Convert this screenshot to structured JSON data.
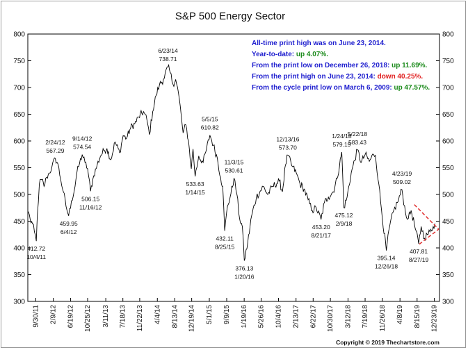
{
  "chart_data": {
    "type": "line",
    "title": "S&P 500 Energy Sector",
    "ylim": [
      300,
      800
    ],
    "y_ticks": [
      300,
      350,
      400,
      450,
      500,
      550,
      600,
      650,
      700,
      750,
      800
    ],
    "x_range": [
      "2011-08-01",
      "2020-01-31"
    ],
    "x_ticks": [
      {
        "date": "2011-09-30",
        "label": "9/30/11"
      },
      {
        "date": "2012-02-09",
        "label": "2/9/12"
      },
      {
        "date": "2012-06-19",
        "label": "6/19/12"
      },
      {
        "date": "2012-10-25",
        "label": "10/25/12"
      },
      {
        "date": "2013-03-11",
        "label": "3/11/13"
      },
      {
        "date": "2013-07-18",
        "label": "7/18/13"
      },
      {
        "date": "2013-11-22",
        "label": "11/22/13"
      },
      {
        "date": "2014-04-04",
        "label": "4/4/14"
      },
      {
        "date": "2014-08-13",
        "label": "8/13/14"
      },
      {
        "date": "2014-12-19",
        "label": "12/19/14"
      },
      {
        "date": "2015-05-01",
        "label": "5/1/15"
      },
      {
        "date": "2015-09-09",
        "label": "9/9/15"
      },
      {
        "date": "2016-01-19",
        "label": "1/19/16"
      },
      {
        "date": "2016-05-26",
        "label": "5/26/16"
      },
      {
        "date": "2016-10-04",
        "label": "10/4/16"
      },
      {
        "date": "2017-02-13",
        "label": "2/13/17"
      },
      {
        "date": "2017-06-22",
        "label": "6/22/17"
      },
      {
        "date": "2017-10-30",
        "label": "10/30/17"
      },
      {
        "date": "2018-03-12",
        "label": "3/12/18"
      },
      {
        "date": "2018-07-19",
        "label": "7/19/18"
      },
      {
        "date": "2018-11-26",
        "label": "11/26/18"
      },
      {
        "date": "2019-04-08",
        "label": "4/8/19"
      },
      {
        "date": "2019-08-15",
        "label": "8/15/19"
      },
      {
        "date": "2019-12-23",
        "label": "12/23/19"
      }
    ],
    "series": [
      {
        "color": "#000000",
        "points": [
          [
            "2011-08-05",
            468
          ],
          [
            "2011-08-20",
            452
          ],
          [
            "2011-09-05",
            445
          ],
          [
            "2011-09-20",
            430
          ],
          [
            "2011-10-04",
            412.72
          ],
          [
            "2011-10-12",
            462
          ],
          [
            "2011-10-27",
            520
          ],
          [
            "2011-11-15",
            528
          ],
          [
            "2011-12-01",
            515
          ],
          [
            "2011-12-20",
            532
          ],
          [
            "2012-01-10",
            540
          ],
          [
            "2012-01-30",
            552
          ],
          [
            "2012-02-24",
            567.29
          ],
          [
            "2012-03-15",
            557
          ],
          [
            "2012-04-05",
            528
          ],
          [
            "2012-04-25",
            505
          ],
          [
            "2012-05-15",
            478
          ],
          [
            "2012-06-04",
            459.95
          ],
          [
            "2012-06-25",
            488
          ],
          [
            "2012-07-15",
            505
          ],
          [
            "2012-08-05",
            540
          ],
          [
            "2012-08-25",
            558
          ],
          [
            "2012-09-14",
            574.54
          ],
          [
            "2012-10-05",
            560
          ],
          [
            "2012-10-25",
            548
          ],
          [
            "2012-11-16",
            506.15
          ],
          [
            "2012-12-10",
            535
          ],
          [
            "2013-01-05",
            555
          ],
          [
            "2013-01-30",
            572
          ],
          [
            "2013-02-25",
            582
          ],
          [
            "2013-03-20",
            586
          ],
          [
            "2013-04-18",
            565
          ],
          [
            "2013-05-20",
            598
          ],
          [
            "2013-06-24",
            578
          ],
          [
            "2013-07-20",
            610
          ],
          [
            "2013-08-15",
            605
          ],
          [
            "2013-09-15",
            625
          ],
          [
            "2013-10-15",
            632
          ],
          [
            "2013-11-15",
            645
          ],
          [
            "2013-12-20",
            655
          ],
          [
            "2014-01-15",
            640
          ],
          [
            "2014-02-03",
            612
          ],
          [
            "2014-02-28",
            655
          ],
          [
            "2014-03-25",
            685
          ],
          [
            "2014-04-20",
            705
          ],
          [
            "2014-05-20",
            715
          ],
          [
            "2014-06-23",
            738.71
          ],
          [
            "2014-07-10",
            728
          ],
          [
            "2014-07-31",
            706
          ],
          [
            "2014-08-20",
            715
          ],
          [
            "2014-09-10",
            690
          ],
          [
            "2014-10-01",
            648
          ],
          [
            "2014-10-15",
            615
          ],
          [
            "2014-11-05",
            630
          ],
          [
            "2014-11-25",
            600
          ],
          [
            "2014-12-16",
            548
          ],
          [
            "2014-12-29",
            585
          ],
          [
            "2015-01-14",
            533.63
          ],
          [
            "2015-02-10",
            572
          ],
          [
            "2015-03-15",
            560
          ],
          [
            "2015-04-10",
            585
          ],
          [
            "2015-05-05",
            610.82
          ],
          [
            "2015-06-01",
            592
          ],
          [
            "2015-06-30",
            568
          ],
          [
            "2015-07-25",
            532
          ],
          [
            "2015-08-10",
            515
          ],
          [
            "2015-08-25",
            432.11
          ],
          [
            "2015-09-15",
            478
          ],
          [
            "2015-10-05",
            495
          ],
          [
            "2015-11-03",
            530.61
          ],
          [
            "2015-11-25",
            500
          ],
          [
            "2015-12-15",
            455
          ],
          [
            "2016-01-05",
            440
          ],
          [
            "2016-01-20",
            376.13
          ],
          [
            "2016-02-15",
            410
          ],
          [
            "2016-03-15",
            460
          ],
          [
            "2016-04-20",
            495
          ],
          [
            "2016-06-10",
            515
          ],
          [
            "2016-07-15",
            500
          ],
          [
            "2016-08-20",
            515
          ],
          [
            "2016-10-10",
            525
          ],
          [
            "2016-11-02",
            505
          ],
          [
            "2016-11-25",
            555
          ],
          [
            "2016-12-13",
            573.7
          ],
          [
            "2017-01-10",
            555
          ],
          [
            "2017-02-15",
            540
          ],
          [
            "2017-03-15",
            520
          ],
          [
            "2017-04-15",
            510
          ],
          [
            "2017-05-15",
            490
          ],
          [
            "2017-06-15",
            470
          ],
          [
            "2017-07-15",
            475
          ],
          [
            "2017-08-21",
            453.2
          ],
          [
            "2017-09-15",
            485
          ],
          [
            "2017-10-15",
            495
          ],
          [
            "2017-11-20",
            505
          ],
          [
            "2017-12-20",
            530
          ],
          [
            "2018-01-24",
            579.19
          ],
          [
            "2018-02-09",
            475.12
          ],
          [
            "2018-03-05",
            495
          ],
          [
            "2018-04-05",
            540
          ],
          [
            "2018-05-22",
            583.43
          ],
          [
            "2018-06-20",
            560
          ],
          [
            "2018-07-20",
            575
          ],
          [
            "2018-08-20",
            562
          ],
          [
            "2018-09-20",
            575
          ],
          [
            "2018-10-05",
            573
          ],
          [
            "2018-10-30",
            520
          ],
          [
            "2018-11-20",
            470
          ],
          [
            "2018-12-26",
            395.14
          ],
          [
            "2019-01-20",
            440
          ],
          [
            "2019-02-20",
            470
          ],
          [
            "2019-03-20",
            485
          ],
          [
            "2019-04-23",
            509.02
          ],
          [
            "2019-05-20",
            465
          ],
          [
            "2019-06-10",
            455
          ],
          [
            "2019-07-01",
            470
          ],
          [
            "2019-07-25",
            445
          ],
          [
            "2019-08-27",
            407.81
          ],
          [
            "2019-09-15",
            440
          ],
          [
            "2019-10-10",
            418
          ],
          [
            "2019-10-31",
            425
          ],
          [
            "2019-11-20",
            430
          ],
          [
            "2019-12-15",
            440
          ],
          [
            "2019-12-31",
            445
          ]
        ]
      }
    ],
    "annotations": [
      {
        "date": "2011-10-04",
        "value": 412.72,
        "label": "412.72",
        "sub": "10/4/11",
        "pos": "below"
      },
      {
        "date": "2012-02-24",
        "value": 567.29,
        "label": "567.29",
        "sub": "2/24/12",
        "pos": "above"
      },
      {
        "date": "2012-06-04",
        "value": 459.95,
        "label": "459.95",
        "sub": "6/4/12",
        "pos": "below"
      },
      {
        "date": "2012-09-14",
        "value": 574.54,
        "label": "574.54",
        "sub": "9/14/12",
        "pos": "above"
      },
      {
        "date": "2012-11-16",
        "value": 506.15,
        "label": "506.15",
        "sub": "11/16/12",
        "pos": "below"
      },
      {
        "date": "2014-06-23",
        "value": 738.71,
        "label": "738.71",
        "sub": "6/23/14",
        "pos": "above"
      },
      {
        "date": "2015-01-14",
        "value": 533.63,
        "label": "533.63",
        "sub": "1/14/15",
        "pos": "below"
      },
      {
        "date": "2015-05-05",
        "value": 610.82,
        "label": "610.82",
        "sub": "5/5/15",
        "pos": "above"
      },
      {
        "date": "2015-08-25",
        "value": 432.11,
        "label": "432.11",
        "sub": "8/25/15",
        "pos": "below"
      },
      {
        "date": "2015-11-03",
        "value": 530.61,
        "label": "530.61",
        "sub": "11/3/15",
        "pos": "above"
      },
      {
        "date": "2016-01-20",
        "value": 376.13,
        "label": "376.13",
        "sub": "1/20/16",
        "pos": "below"
      },
      {
        "date": "2016-12-13",
        "value": 573.7,
        "label": "573.70",
        "sub": "12/13/16",
        "pos": "above"
      },
      {
        "date": "2017-08-21",
        "value": 453.2,
        "label": "453.20",
        "sub": "8/21/17",
        "pos": "below"
      },
      {
        "date": "2018-01-24",
        "value": 579.19,
        "label": "579.19",
        "sub": "1/24/18",
        "pos": "above"
      },
      {
        "date": "2018-02-09",
        "value": 475.12,
        "label": "475.12",
        "sub": "2/9/18",
        "pos": "below"
      },
      {
        "date": "2018-05-22",
        "value": 583.43,
        "label": "583.43",
        "sub": "5/22/18",
        "pos": "above"
      },
      {
        "date": "2018-12-26",
        "value": 395.14,
        "label": "395.14",
        "sub": "12/26/18",
        "pos": "below"
      },
      {
        "date": "2019-04-23",
        "value": 509.02,
        "label": "509.02",
        "sub": "4/23/19",
        "pos": "above"
      },
      {
        "date": "2019-08-27",
        "value": 407.81,
        "label": "407.81",
        "sub": "8/27/19",
        "pos": "below"
      }
    ],
    "info_lines": [
      {
        "text": "All-time print high was on June 23, 2014.",
        "color": "#1f1fcf"
      },
      {
        "text": "Year-to-date: ",
        "value": "up 4.07%.",
        "color": "#1f1fcf",
        "value_color": "#1a8a1a"
      },
      {
        "text": "From the print low on December 26, 2018: ",
        "value": "up 11.69%.",
        "color": "#1f1fcf",
        "value_color": "#1a8a1a"
      },
      {
        "text": "From the print high on June 23, 2014: ",
        "value": "down 40.25%.",
        "color": "#1f1fcf",
        "value_color": "#e02020"
      },
      {
        "text": "From the cycle print low on March 6, 2009: ",
        "value": "up 47.57%.",
        "color": "#1f1fcf",
        "value_color": "#1a8a1a"
      }
    ],
    "triangle": {
      "color": "#e03030",
      "apex": [
        "2020-01-25",
        435
      ],
      "upper": [
        "2019-07-25",
        481
      ],
      "lower": [
        "2019-09-01",
        407
      ]
    },
    "grid": false,
    "copyright": "Copyright © 2019 Thechartstore.com"
  }
}
